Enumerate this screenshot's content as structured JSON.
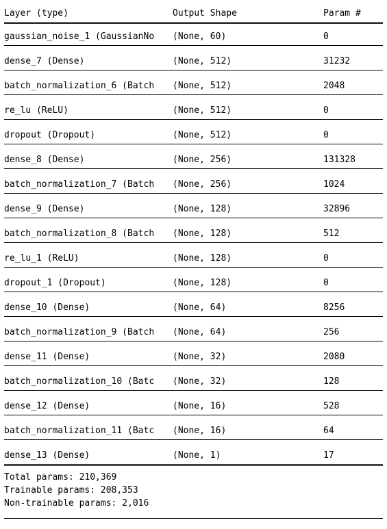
{
  "header": {
    "layer": "Layer (type)",
    "shape": "Output Shape",
    "params": "Param #"
  },
  "rows": [
    {
      "layer": "gaussian_noise_1 (GaussianNo",
      "shape": "(None, 60)",
      "params": "0"
    },
    {
      "layer": "dense_7 (Dense)",
      "shape": "(None, 512)",
      "params": "31232"
    },
    {
      "layer": "batch_normalization_6 (Batch",
      "shape": "(None, 512)",
      "params": "2048"
    },
    {
      "layer": "re_lu (ReLU)",
      "shape": "(None, 512)",
      "params": "0"
    },
    {
      "layer": "dropout (Dropout)",
      "shape": "(None, 512)",
      "params": "0"
    },
    {
      "layer": "dense_8 (Dense)",
      "shape": "(None, 256)",
      "params": "131328"
    },
    {
      "layer": "batch_normalization_7 (Batch",
      "shape": "(None, 256)",
      "params": "1024"
    },
    {
      "layer": "dense_9 (Dense)",
      "shape": "(None, 128)",
      "params": "32896"
    },
    {
      "layer": "batch_normalization_8 (Batch",
      "shape": "(None, 128)",
      "params": "512"
    },
    {
      "layer": "re_lu_1 (ReLU)",
      "shape": "(None, 128)",
      "params": "0"
    },
    {
      "layer": "dropout_1 (Dropout)",
      "shape": "(None, 128)",
      "params": "0"
    },
    {
      "layer": "dense_10 (Dense)",
      "shape": "(None, 64)",
      "params": "8256"
    },
    {
      "layer": "batch_normalization_9 (Batch",
      "shape": "(None, 64)",
      "params": "256"
    },
    {
      "layer": "dense_11 (Dense)",
      "shape": "(None, 32)",
      "params": "2080"
    },
    {
      "layer": "batch_normalization_10 (Batc",
      "shape": "(None, 32)",
      "params": "128"
    },
    {
      "layer": "dense_12 (Dense)",
      "shape": "(None, 16)",
      "params": "528"
    },
    {
      "layer": "batch_normalization_11 (Batc",
      "shape": "(None, 16)",
      "params": "64"
    },
    {
      "layer": "dense_13 (Dense)",
      "shape": "(None, 1)",
      "params": "17"
    }
  ],
  "totals": {
    "total": "Total params: 210,369",
    "trainable": "Trainable params: 208,353",
    "non_trainable": "Non-trainable params: 2,016"
  }
}
